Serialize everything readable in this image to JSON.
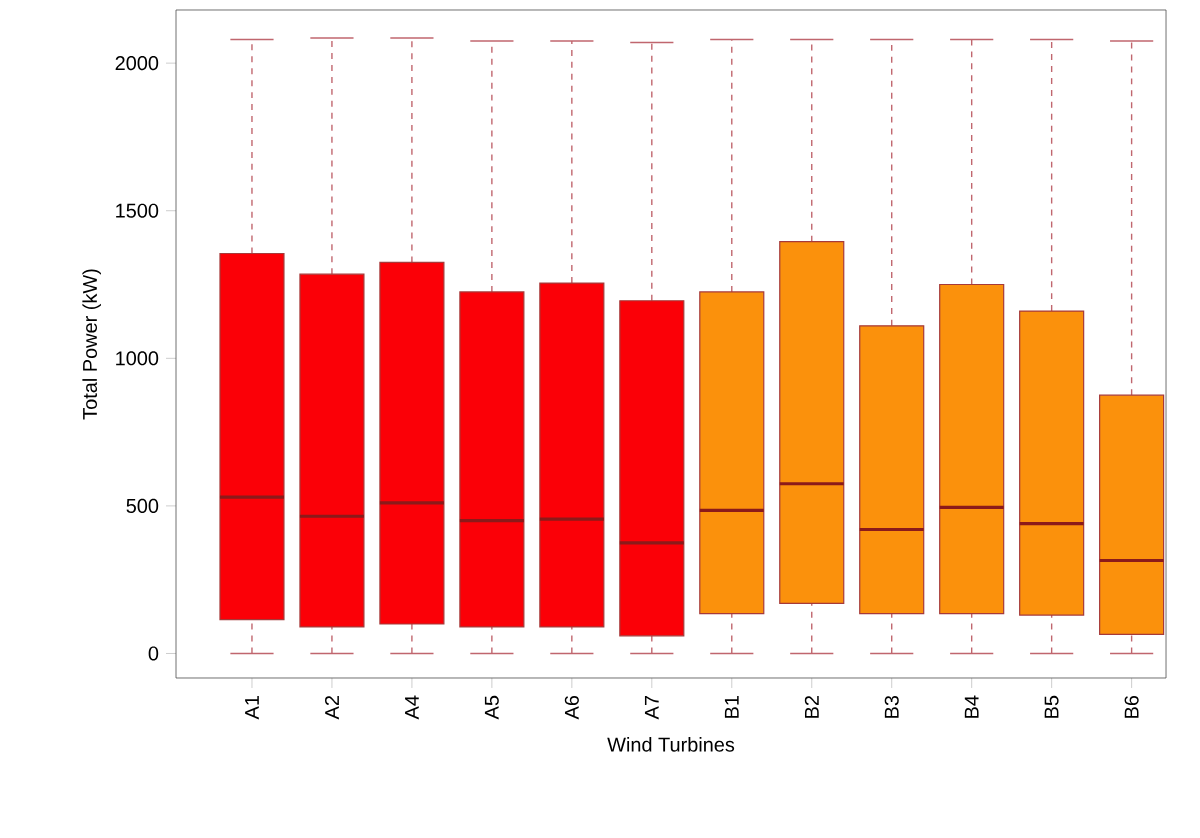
{
  "chart_data": {
    "type": "box",
    "xlabel": "Wind Turbines",
    "ylabel": "Total Power (kW)",
    "categories": [
      "A1",
      "A2",
      "A4",
      "A5",
      "A6",
      "A7",
      "B1",
      "B2",
      "B3",
      "B4",
      "B5",
      "B6"
    ],
    "boxes": [
      {
        "low": 0,
        "q1": 115,
        "median": 530,
        "q3": 1355,
        "high": 2080
      },
      {
        "low": 0,
        "q1": 90,
        "median": 465,
        "q3": 1285,
        "high": 2085
      },
      {
        "low": 0,
        "q1": 100,
        "median": 510,
        "q3": 1325,
        "high": 2085
      },
      {
        "low": 0,
        "q1": 90,
        "median": 450,
        "q3": 1225,
        "high": 2075
      },
      {
        "low": 0,
        "q1": 90,
        "median": 455,
        "q3": 1255,
        "high": 2075
      },
      {
        "low": 0,
        "q1": 60,
        "median": 375,
        "q3": 1195,
        "high": 2070
      },
      {
        "low": 0,
        "q1": 135,
        "median": 485,
        "q3": 1225,
        "high": 2080
      },
      {
        "low": 0,
        "q1": 170,
        "median": 575,
        "q3": 1395,
        "high": 2080
      },
      {
        "low": 0,
        "q1": 135,
        "median": 420,
        "q3": 1110,
        "high": 2080
      },
      {
        "low": 0,
        "q1": 135,
        "median": 495,
        "q3": 1250,
        "high": 2080
      },
      {
        "low": 0,
        "q1": 130,
        "median": 440,
        "q3": 1160,
        "high": 2080
      },
      {
        "low": 0,
        "q1": 65,
        "median": 315,
        "q3": 875,
        "high": 2075
      }
    ],
    "colors": [
      "#fb0007",
      "#fb0007",
      "#fb0007",
      "#fb0007",
      "#fb0007",
      "#fb0007",
      "#fb910c",
      "#fb910c",
      "#fb910c",
      "#fb910c",
      "#fb910c",
      "#fb910c"
    ],
    "ylim": [
      -83,
      2180
    ],
    "yticks": [
      0,
      500,
      1000,
      1500,
      2000
    ]
  }
}
